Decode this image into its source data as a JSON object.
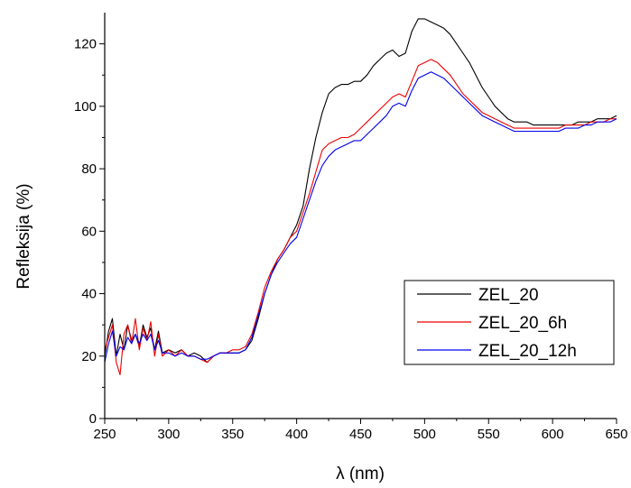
{
  "chart_data": {
    "type": "line",
    "title": "",
    "xlabel": "λ (nm)",
    "ylabel": "Refleksija (%)",
    "xlim": [
      250,
      650
    ],
    "ylim": [
      0,
      130
    ],
    "x_ticks": [
      250,
      300,
      350,
      400,
      450,
      500,
      550,
      600,
      650
    ],
    "y_ticks": [
      0,
      20,
      40,
      60,
      80,
      100,
      120
    ],
    "legend_position": "lower-right",
    "grid": false,
    "series": [
      {
        "name": "ZEL_20",
        "color": "#000000",
        "x": [
          250,
          253,
          256,
          259,
          262,
          265,
          268,
          271,
          274,
          277,
          280,
          283,
          286,
          289,
          292,
          295,
          300,
          305,
          310,
          315,
          320,
          325,
          330,
          335,
          340,
          345,
          350,
          355,
          360,
          365,
          370,
          375,
          380,
          385,
          390,
          395,
          400,
          405,
          410,
          415,
          420,
          425,
          430,
          435,
          440,
          445,
          450,
          455,
          460,
          465,
          470,
          475,
          480,
          485,
          490,
          495,
          500,
          505,
          510,
          515,
          520,
          525,
          530,
          535,
          540,
          545,
          550,
          555,
          560,
          565,
          570,
          575,
          580,
          585,
          590,
          595,
          600,
          605,
          610,
          615,
          620,
          625,
          630,
          635,
          640,
          645,
          650
        ],
        "y": [
          20,
          28,
          32,
          20,
          27,
          22,
          30,
          25,
          27,
          23,
          30,
          26,
          29,
          22,
          28,
          21,
          22,
          21,
          22,
          20,
          21,
          20,
          18,
          20,
          21,
          21,
          21,
          21,
          22,
          25,
          32,
          40,
          46,
          51,
          54,
          58,
          62,
          68,
          80,
          90,
          98,
          104,
          106,
          107,
          107,
          108,
          108,
          110,
          113,
          115,
          117,
          118,
          116,
          117,
          124,
          128,
          128,
          127,
          126,
          125,
          123,
          120,
          117,
          114,
          110,
          106,
          103,
          100,
          98,
          96,
          95,
          95,
          95,
          94,
          94,
          94,
          94,
          94,
          94,
          94,
          95,
          95,
          95,
          96,
          96,
          96,
          97
        ]
      },
      {
        "name": "ZEL_20_6h",
        "color": "#ee0000",
        "x": [
          250,
          253,
          256,
          259,
          262,
          265,
          268,
          271,
          274,
          277,
          280,
          283,
          286,
          289,
          292,
          295,
          300,
          305,
          310,
          315,
          320,
          325,
          330,
          335,
          340,
          345,
          350,
          355,
          360,
          365,
          370,
          375,
          380,
          385,
          390,
          395,
          400,
          405,
          410,
          415,
          420,
          425,
          430,
          435,
          440,
          445,
          450,
          455,
          460,
          465,
          470,
          475,
          480,
          485,
          490,
          495,
          500,
          505,
          510,
          515,
          520,
          525,
          530,
          535,
          540,
          545,
          550,
          555,
          560,
          565,
          570,
          575,
          580,
          585,
          590,
          595,
          600,
          605,
          610,
          615,
          620,
          625,
          630,
          635,
          640,
          645,
          650
        ],
        "y": [
          22,
          26,
          30,
          18,
          14,
          27,
          30,
          24,
          32,
          22,
          29,
          25,
          31,
          20,
          27,
          20,
          22,
          20,
          22,
          20,
          20,
          19,
          18,
          20,
          21,
          21,
          22,
          22,
          23,
          27,
          34,
          42,
          47,
          51,
          54,
          58,
          60,
          66,
          72,
          79,
          86,
          88,
          89,
          90,
          90,
          91,
          93,
          95,
          97,
          99,
          101,
          103,
          104,
          103,
          108,
          113,
          114,
          115,
          114,
          112,
          110,
          107,
          104,
          102,
          100,
          98,
          97,
          96,
          95,
          94,
          93,
          93,
          93,
          93,
          93,
          93,
          93,
          93,
          94,
          94,
          94,
          94,
          95,
          95,
          95,
          96,
          96
        ]
      },
      {
        "name": "ZEL_20_12h",
        "color": "#0000ee",
        "x": [
          250,
          253,
          256,
          259,
          262,
          265,
          268,
          271,
          274,
          277,
          280,
          283,
          286,
          289,
          292,
          295,
          300,
          305,
          310,
          315,
          320,
          325,
          330,
          335,
          340,
          345,
          350,
          355,
          360,
          365,
          370,
          375,
          380,
          385,
          390,
          395,
          400,
          405,
          410,
          415,
          420,
          425,
          430,
          435,
          440,
          445,
          450,
          455,
          460,
          465,
          470,
          475,
          480,
          485,
          490,
          495,
          500,
          505,
          510,
          515,
          520,
          525,
          530,
          535,
          540,
          545,
          550,
          555,
          560,
          565,
          570,
          575,
          580,
          585,
          590,
          595,
          600,
          605,
          610,
          615,
          620,
          625,
          630,
          635,
          640,
          645,
          650
        ],
        "y": [
          18,
          24,
          28,
          20,
          23,
          22,
          26,
          24,
          27,
          24,
          27,
          25,
          27,
          22,
          25,
          21,
          21,
          20,
          21,
          20,
          20,
          19,
          19,
          20,
          21,
          21,
          21,
          21,
          22,
          26,
          33,
          40,
          46,
          50,
          53,
          56,
          58,
          64,
          70,
          76,
          81,
          84,
          86,
          87,
          88,
          89,
          89,
          91,
          93,
          95,
          97,
          100,
          101,
          100,
          105,
          109,
          110,
          111,
          110,
          109,
          107,
          105,
          103,
          101,
          99,
          97,
          96,
          95,
          94,
          93,
          92,
          92,
          92,
          92,
          92,
          92,
          92,
          92,
          93,
          93,
          93,
          94,
          94,
          95,
          95,
          95,
          96
        ]
      }
    ]
  }
}
